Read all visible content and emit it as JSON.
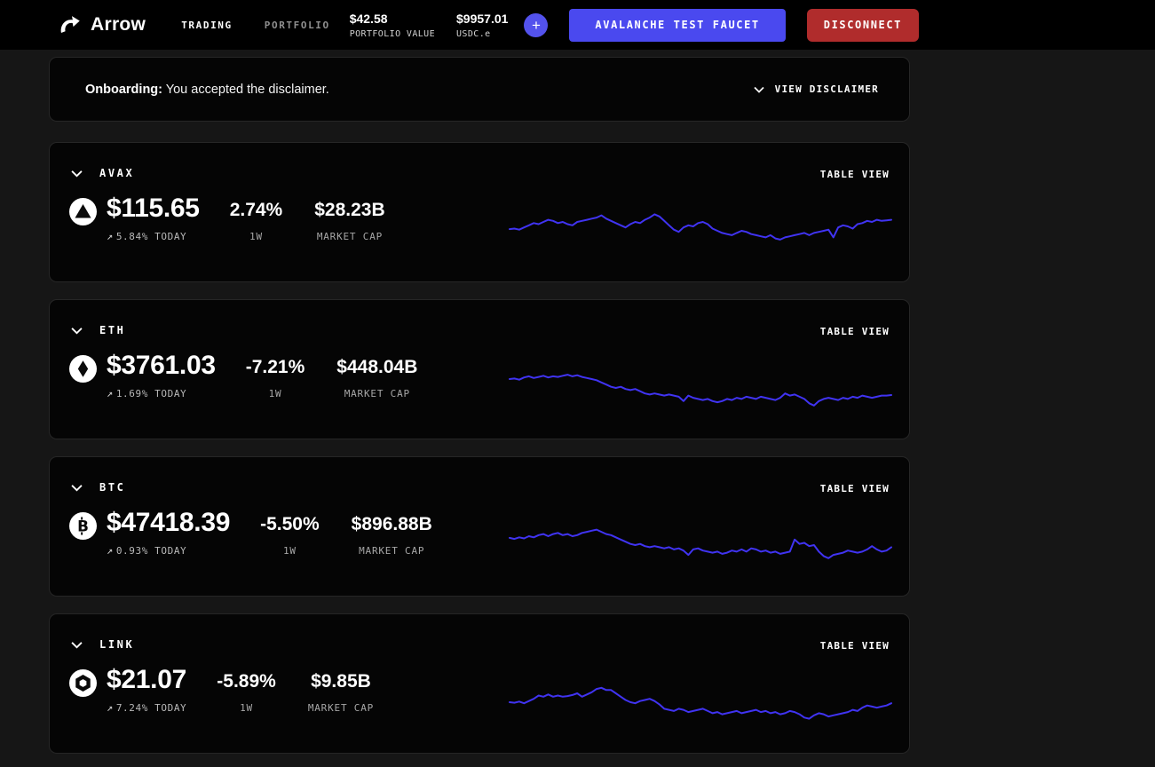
{
  "nav": {
    "brand": "Arrow",
    "links": [
      {
        "label": "TRADING",
        "active": true
      },
      {
        "label": "PORTFOLIO",
        "active": false
      }
    ],
    "portfolio_value": "$42.58",
    "portfolio_value_label": "PORTFOLIO VALUE",
    "usdc_value": "$9957.01",
    "usdc_label": "USDC.e",
    "plus_label": "+",
    "faucet_button": "AVALANCHE TEST FAUCET",
    "disconnect_button": "DISCONNECT"
  },
  "banner": {
    "title": "Onboarding:",
    "message": " You accepted the disclaimer.",
    "action": "VIEW DISCLAIMER"
  },
  "icons": {
    "trend_up": "↗"
  },
  "colors": {
    "accent_blue": "#4a49ef",
    "plus_purple": "#5352ed",
    "disconnect_red": "#b02c2c",
    "spark_blue": "#4033f2"
  },
  "cards": [
    {
      "symbol": "AVAX",
      "icon": "avax-icon",
      "price": "$115.65",
      "today": "5.84% TODAY",
      "week_change": "2.74%",
      "week_label": "1W",
      "market_cap": "$28.23B",
      "market_cap_label": "MARKET CAP",
      "table_view": "TABLE VIEW"
    },
    {
      "symbol": "ETH",
      "icon": "eth-icon",
      "price": "$3761.03",
      "today": "1.69% TODAY",
      "week_change": "-7.21%",
      "week_label": "1W",
      "market_cap": "$448.04B",
      "market_cap_label": "MARKET CAP",
      "table_view": "TABLE VIEW"
    },
    {
      "symbol": "BTC",
      "icon": "btc-icon",
      "price": "$47418.39",
      "today": "0.93% TODAY",
      "week_change": "-5.50%",
      "week_label": "1W",
      "market_cap": "$896.88B",
      "market_cap_label": "MARKET CAP",
      "table_view": "TABLE VIEW"
    },
    {
      "symbol": "LINK",
      "icon": "link-icon",
      "price": "$21.07",
      "today": "7.24% TODAY",
      "week_change": "-5.89%",
      "week_label": "1W",
      "market_cap": "$9.85B",
      "market_cap_label": "MARKET CAP",
      "table_view": "TABLE VIEW"
    }
  ],
  "chart_data": [
    {
      "type": "line",
      "name": "AVAX 1W price sparkline",
      "color": "#4033f2",
      "axes": "hidden",
      "normalized_0_100": true,
      "values": [
        45,
        46,
        44,
        48,
        52,
        56,
        54,
        58,
        62,
        60,
        56,
        58,
        54,
        52,
        58,
        60,
        62,
        64,
        66,
        70,
        64,
        60,
        56,
        52,
        48,
        54,
        58,
        56,
        62,
        66,
        72,
        68,
        60,
        52,
        44,
        40,
        48,
        52,
        50,
        56,
        58,
        54,
        46,
        42,
        38,
        36,
        34,
        38,
        42,
        40,
        36,
        34,
        32,
        30,
        34,
        28,
        26,
        30,
        32,
        34,
        36,
        38,
        34,
        38,
        40,
        42,
        44,
        30,
        48,
        52,
        50,
        46,
        54,
        56,
        60,
        58,
        62,
        60,
        61,
        62
      ]
    },
    {
      "type": "line",
      "name": "ETH 1W price sparkline",
      "color": "#4033f2",
      "axes": "hidden",
      "normalized_0_100": true,
      "values": [
        58,
        59,
        57,
        61,
        63,
        60,
        62,
        64,
        61,
        63,
        62,
        64,
        66,
        63,
        65,
        62,
        60,
        58,
        56,
        52,
        48,
        44,
        42,
        44,
        40,
        38,
        40,
        36,
        32,
        30,
        32,
        30,
        28,
        30,
        28,
        26,
        18,
        28,
        24,
        22,
        20,
        22,
        18,
        16,
        18,
        22,
        20,
        24,
        22,
        26,
        24,
        22,
        26,
        24,
        22,
        20,
        24,
        32,
        28,
        30,
        26,
        22,
        14,
        10,
        18,
        22,
        24,
        22,
        20,
        24,
        22,
        26,
        24,
        28,
        26,
        24,
        26,
        28,
        28,
        29
      ]
    },
    {
      "type": "line",
      "name": "BTC 1W price sparkline",
      "color": "#4033f2",
      "axes": "hidden",
      "normalized_0_100": true,
      "values": [
        55,
        53,
        56,
        54,
        58,
        56,
        60,
        62,
        58,
        62,
        64,
        60,
        62,
        58,
        60,
        64,
        66,
        68,
        70,
        66,
        62,
        60,
        56,
        52,
        48,
        44,
        42,
        44,
        40,
        38,
        40,
        38,
        36,
        38,
        34,
        36,
        32,
        24,
        34,
        36,
        32,
        30,
        28,
        30,
        26,
        28,
        32,
        30,
        34,
        30,
        36,
        34,
        30,
        32,
        28,
        30,
        26,
        28,
        30,
        52,
        44,
        46,
        40,
        42,
        30,
        22,
        18,
        24,
        26,
        28,
        32,
        30,
        28,
        30,
        34,
        40,
        34,
        30,
        32,
        38
      ]
    },
    {
      "type": "line",
      "name": "LINK 1W price sparkline",
      "color": "#4033f2",
      "axes": "hidden",
      "normalized_0_100": true,
      "values": [
        42,
        41,
        43,
        40,
        44,
        48,
        54,
        52,
        56,
        52,
        54,
        52,
        53,
        55,
        58,
        52,
        56,
        60,
        66,
        68,
        64,
        64,
        58,
        52,
        46,
        42,
        40,
        44,
        46,
        48,
        44,
        38,
        30,
        28,
        26,
        30,
        28,
        24,
        26,
        28,
        30,
        26,
        22,
        24,
        20,
        22,
        24,
        26,
        22,
        24,
        26,
        28,
        24,
        26,
        22,
        24,
        20,
        22,
        26,
        24,
        20,
        14,
        12,
        18,
        22,
        20,
        16,
        18,
        20,
        22,
        24,
        28,
        26,
        32,
        36,
        34,
        32,
        34,
        36,
        40
      ]
    }
  ]
}
